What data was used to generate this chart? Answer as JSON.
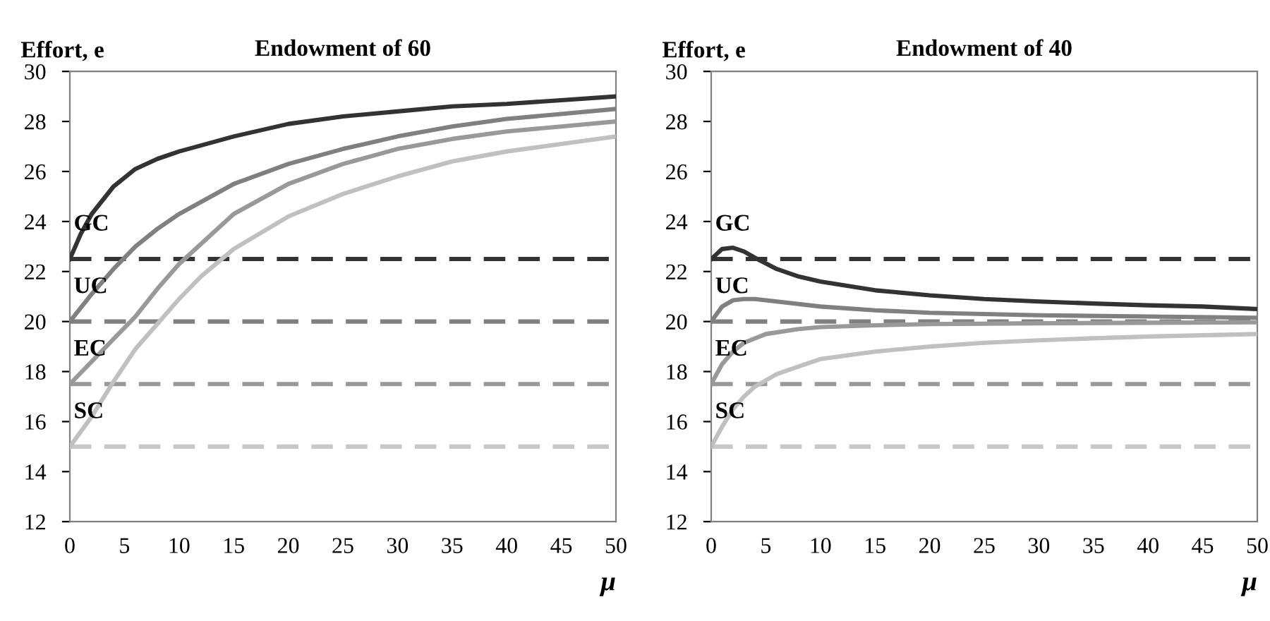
{
  "chart_data": [
    {
      "type": "line",
      "title": "Endowment of 60",
      "ylabel": "Effort, e",
      "xlabel": "μ",
      "xlim": [
        0,
        50
      ],
      "xticks": [
        0,
        5,
        10,
        15,
        20,
        25,
        30,
        35,
        40,
        45,
        50
      ],
      "ylim": [
        12,
        30
      ],
      "yticks": [
        12,
        14,
        16,
        18,
        20,
        22,
        24,
        26,
        28,
        30
      ],
      "grid": false,
      "legend": false,
      "marker": "none",
      "line_style": "solid",
      "series": [
        {
          "name": "GC",
          "color": "#333333",
          "x": [
            0,
            1,
            2,
            4,
            6,
            8,
            10,
            15,
            20,
            25,
            30,
            35,
            40,
            45,
            50
          ],
          "values": [
            22.5,
            23.5,
            24.3,
            25.4,
            26.1,
            26.5,
            26.8,
            27.4,
            27.9,
            28.2,
            28.4,
            28.6,
            28.7,
            28.85,
            29.0
          ]
        },
        {
          "name": "UC",
          "color": "#808080",
          "x": [
            0,
            2,
            4,
            6,
            8,
            10,
            15,
            20,
            25,
            30,
            35,
            40,
            45,
            50
          ],
          "values": [
            20,
            21.1,
            22.1,
            23.0,
            23.7,
            24.3,
            25.5,
            26.3,
            26.9,
            27.4,
            27.8,
            28.1,
            28.3,
            28.5
          ]
        },
        {
          "name": "EC",
          "color": "#999999",
          "x": [
            0,
            2,
            4,
            6,
            8,
            10,
            15,
            20,
            25,
            30,
            35,
            40,
            45,
            50
          ],
          "values": [
            17.5,
            18.4,
            19.3,
            20.2,
            21.3,
            22.3,
            24.3,
            25.5,
            26.3,
            26.9,
            27.3,
            27.6,
            27.8,
            28.0
          ]
        },
        {
          "name": "SC",
          "color": "#c0c0c0",
          "x": [
            0,
            2,
            4,
            6,
            8,
            10,
            12,
            15,
            20,
            25,
            30,
            35,
            40,
            45,
            50
          ],
          "values": [
            15,
            16.2,
            17.6,
            18.9,
            19.9,
            20.9,
            21.8,
            22.9,
            24.2,
            25.1,
            25.8,
            26.4,
            26.8,
            27.1,
            27.4
          ]
        }
      ],
      "ref_lines": [
        {
          "axis": "y",
          "value": 22.5,
          "color": "#333333",
          "line_style": "dashed"
        },
        {
          "axis": "y",
          "value": 20,
          "color": "#808080",
          "line_style": "dashed"
        },
        {
          "axis": "y",
          "value": 17.5,
          "color": "#999999",
          "line_style": "dashed"
        },
        {
          "axis": "y",
          "value": 15,
          "color": "#c8c8c8",
          "line_style": "dashed"
        }
      ]
    },
    {
      "type": "line",
      "title": "Endowment of 40",
      "ylabel": "Effort, e",
      "xlabel": "μ",
      "xlim": [
        0,
        50
      ],
      "xticks": [
        0,
        5,
        10,
        15,
        20,
        25,
        30,
        35,
        40,
        45,
        50
      ],
      "ylim": [
        12,
        30
      ],
      "yticks": [
        12,
        14,
        16,
        18,
        20,
        22,
        24,
        26,
        28,
        30
      ],
      "grid": false,
      "legend": false,
      "marker": "none",
      "line_style": "solid",
      "series": [
        {
          "name": "GC",
          "color": "#333333",
          "x": [
            0,
            1,
            2,
            3,
            4,
            6,
            8,
            10,
            15,
            20,
            25,
            30,
            35,
            40,
            45,
            50
          ],
          "values": [
            22.5,
            22.9,
            22.95,
            22.8,
            22.55,
            22.1,
            21.8,
            21.6,
            21.25,
            21.05,
            20.9,
            20.8,
            20.72,
            20.65,
            20.6,
            20.5
          ]
        },
        {
          "name": "UC",
          "color": "#808080",
          "x": [
            0,
            1,
            2,
            3,
            4,
            6,
            10,
            15,
            20,
            30,
            40,
            50
          ],
          "values": [
            20,
            20.6,
            20.85,
            20.9,
            20.9,
            20.8,
            20.6,
            20.45,
            20.35,
            20.25,
            20.2,
            20.15
          ]
        },
        {
          "name": "EC",
          "color": "#999999",
          "x": [
            0,
            1,
            2,
            3,
            5,
            8,
            10,
            15,
            20,
            30,
            40,
            50
          ],
          "values": [
            17.5,
            18.3,
            18.8,
            19.15,
            19.5,
            19.7,
            19.78,
            19.85,
            19.9,
            19.93,
            19.95,
            19.97
          ]
        },
        {
          "name": "SC",
          "color": "#c0c0c0",
          "x": [
            0,
            1,
            2,
            3,
            4,
            6,
            8,
            10,
            15,
            20,
            25,
            30,
            35,
            40,
            45,
            50
          ],
          "values": [
            15,
            15.8,
            16.5,
            17.0,
            17.4,
            17.9,
            18.2,
            18.5,
            18.8,
            19.0,
            19.15,
            19.25,
            19.33,
            19.4,
            19.45,
            19.5
          ]
        }
      ],
      "ref_lines": [
        {
          "axis": "y",
          "value": 22.5,
          "color": "#333333",
          "line_style": "dashed"
        },
        {
          "axis": "y",
          "value": 20,
          "color": "#808080",
          "line_style": "dashed"
        },
        {
          "axis": "y",
          "value": 17.5,
          "color": "#999999",
          "line_style": "dashed"
        },
        {
          "axis": "y",
          "value": 15,
          "color": "#c8c8c8",
          "line_style": "dashed"
        }
      ]
    }
  ]
}
